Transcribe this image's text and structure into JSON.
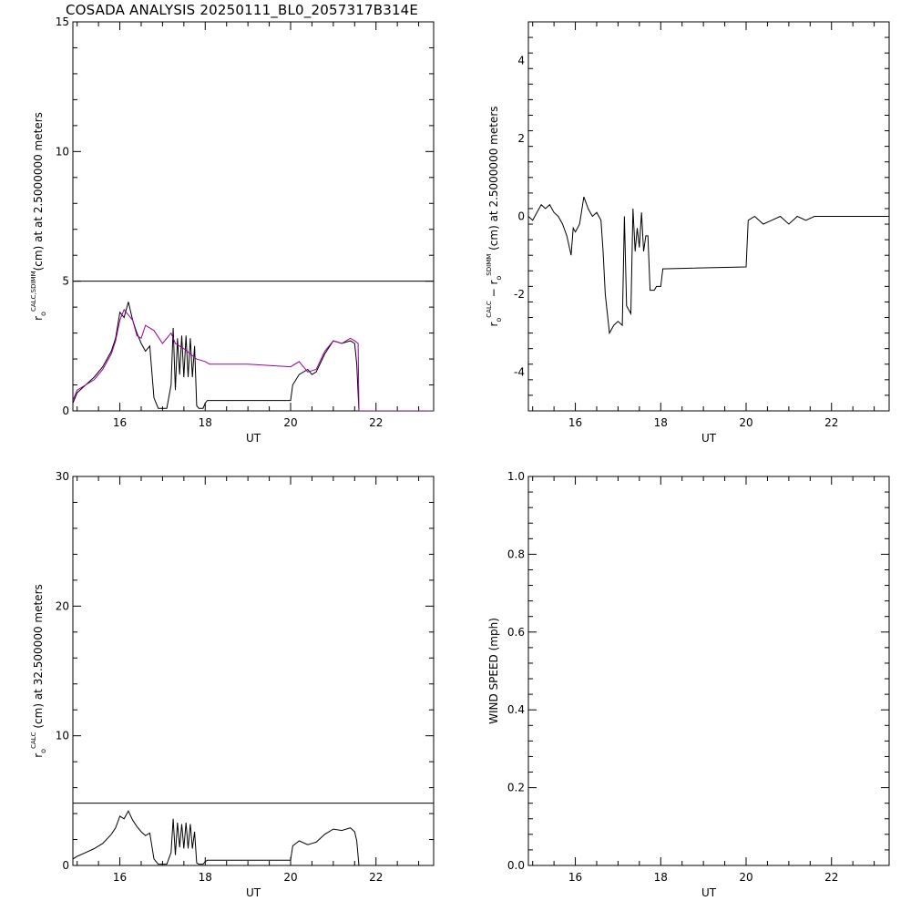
{
  "title": "COSADA ANALYSIS 20250111_BL0_2057317B314E",
  "chart_data": [
    {
      "type": "line",
      "panel": "top-left",
      "xlabel": "UT",
      "ylabel": {
        "base": "r",
        "sub": "o",
        "sup": "CALC,SDIMM",
        "rest": "(cm)  at  at 2.5000000 meters"
      },
      "xlim": [
        14.9,
        23.35
      ],
      "ylim": [
        0,
        15
      ],
      "xticks": [
        16,
        18,
        20,
        22
      ],
      "yticks": [
        0,
        5,
        10,
        15
      ],
      "reference_line": 5,
      "series": [
        {
          "color": "#000000",
          "x": [
            14.9,
            15.0,
            15.2,
            15.4,
            15.6,
            15.8,
            15.9,
            16.0,
            16.1,
            16.2,
            16.3,
            16.4,
            16.5,
            16.6,
            16.7,
            16.75,
            16.8,
            16.9,
            17.0,
            17.05,
            17.1,
            17.2,
            17.25,
            17.3,
            17.35,
            17.4,
            17.45,
            17.5,
            17.55,
            17.6,
            17.65,
            17.7,
            17.75,
            17.8,
            17.85,
            17.9,
            17.95,
            18.0,
            18.05,
            18.1,
            20.0,
            20.05,
            20.2,
            20.4,
            20.5,
            20.6,
            20.8,
            21.0,
            21.2,
            21.4,
            21.5,
            21.55,
            21.6
          ],
          "y": [
            0.3,
            0.7,
            1.0,
            1.3,
            1.7,
            2.3,
            2.8,
            3.8,
            3.6,
            4.2,
            3.5,
            3.0,
            2.6,
            2.3,
            2.5,
            1.5,
            0.5,
            0.1,
            0.1,
            0.1,
            0.1,
            1.0,
            3.2,
            0.8,
            2.8,
            1.4,
            2.9,
            1.3,
            2.9,
            1.3,
            2.8,
            1.3,
            2.5,
            0.2,
            0.1,
            0.1,
            0.1,
            0.3,
            0.4,
            0.4,
            0.4,
            1.0,
            1.4,
            1.6,
            1.4,
            1.5,
            2.2,
            2.7,
            2.6,
            2.7,
            2.6,
            1.8,
            0.0
          ]
        },
        {
          "color": "#990099",
          "x": [
            14.9,
            15.0,
            15.2,
            15.4,
            15.6,
            15.8,
            15.9,
            16.0,
            16.1,
            16.2,
            16.3,
            16.4,
            16.5,
            16.6,
            16.8,
            17.0,
            17.2,
            17.3,
            17.5,
            17.8,
            18.0,
            18.1,
            19.0,
            20.0,
            20.2,
            20.4,
            20.6,
            20.8,
            21.0,
            21.2,
            21.4,
            21.5,
            21.58,
            21.6,
            23.35
          ],
          "y": [
            0.4,
            0.8,
            1.0,
            1.2,
            1.6,
            2.2,
            2.7,
            3.5,
            3.9,
            3.7,
            3.5,
            2.9,
            2.8,
            3.3,
            3.1,
            2.6,
            3.0,
            2.6,
            2.4,
            2.0,
            1.9,
            1.8,
            1.8,
            1.7,
            1.9,
            1.5,
            1.6,
            2.3,
            2.7,
            2.6,
            2.8,
            2.7,
            2.6,
            0.0,
            0.0
          ]
        }
      ]
    },
    {
      "type": "line",
      "panel": "top-right",
      "xlabel": "UT",
      "ylabel": {
        "base": "r",
        "sub": "o",
        "sup": "CALC",
        "mid": "  −  r",
        "sub2": "o",
        "sup2": "SDIMM",
        "rest": " (cm)  at 2.5000000 meters"
      },
      "xlim": [
        14.9,
        23.35
      ],
      "ylim": [
        -5,
        5
      ],
      "xticks": [
        16,
        18,
        20,
        22
      ],
      "yticks": [
        -4,
        -2,
        0,
        2,
        4
      ],
      "series": [
        {
          "color": "#000000",
          "x": [
            14.9,
            15.0,
            15.1,
            15.2,
            15.3,
            15.4,
            15.5,
            15.6,
            15.7,
            15.8,
            15.9,
            15.95,
            16.0,
            16.1,
            16.2,
            16.3,
            16.4,
            16.5,
            16.6,
            16.65,
            16.7,
            16.8,
            16.9,
            17.0,
            17.1,
            17.15,
            17.2,
            17.3,
            17.35,
            17.4,
            17.45,
            17.5,
            17.55,
            17.6,
            17.65,
            17.7,
            17.75,
            17.8,
            17.85,
            17.9,
            18.0,
            18.05,
            20.0,
            20.05,
            20.2,
            20.4,
            20.6,
            20.8,
            21.0,
            21.2,
            21.4,
            21.6,
            23.35
          ],
          "y": [
            0.0,
            -0.1,
            0.1,
            0.3,
            0.2,
            0.3,
            0.1,
            0.0,
            -0.2,
            -0.5,
            -1.0,
            -0.3,
            -0.4,
            -0.2,
            0.5,
            0.2,
            0.0,
            0.1,
            -0.1,
            -0.9,
            -2.0,
            -3.0,
            -2.8,
            -2.7,
            -2.8,
            0.0,
            -2.3,
            -2.5,
            0.2,
            -0.9,
            -0.3,
            -0.8,
            0.1,
            -0.9,
            -0.5,
            -0.5,
            -1.9,
            -1.9,
            -1.9,
            -1.8,
            -1.8,
            -1.35,
            -1.3,
            -0.1,
            0.0,
            -0.2,
            -0.1,
            0.0,
            -0.2,
            0.0,
            -0.1,
            0.0,
            0.0
          ]
        }
      ]
    },
    {
      "type": "line",
      "panel": "bottom-left",
      "xlabel": "UT",
      "ylabel": {
        "base": "r",
        "sub": "o",
        "sup": "CALC",
        "rest": " (cm) at 32.500000 meters"
      },
      "xlim": [
        14.9,
        23.35
      ],
      "ylim": [
        0,
        30
      ],
      "xticks": [
        16,
        18,
        20,
        22
      ],
      "yticks": [
        0,
        10,
        20,
        30
      ],
      "reference_line": 4.8,
      "series": [
        {
          "color": "#000000",
          "x": [
            14.9,
            15.0,
            15.2,
            15.4,
            15.6,
            15.8,
            15.9,
            16.0,
            16.1,
            16.2,
            16.3,
            16.4,
            16.5,
            16.6,
            16.7,
            16.75,
            16.8,
            16.9,
            17.0,
            17.05,
            17.1,
            17.2,
            17.25,
            17.3,
            17.35,
            17.4,
            17.45,
            17.5,
            17.55,
            17.6,
            17.65,
            17.7,
            17.75,
            17.8,
            17.85,
            17.9,
            17.95,
            18.0,
            18.05,
            18.1,
            20.0,
            20.05,
            20.2,
            20.4,
            20.5,
            20.6,
            20.8,
            21.0,
            21.2,
            21.4,
            21.5,
            21.55,
            21.6
          ],
          "y": [
            0.5,
            0.7,
            1.0,
            1.3,
            1.7,
            2.4,
            2.9,
            3.8,
            3.6,
            4.2,
            3.5,
            3.0,
            2.6,
            2.3,
            2.5,
            1.5,
            0.5,
            0.1,
            0.1,
            0.1,
            0.1,
            1.0,
            3.6,
            0.8,
            3.3,
            1.4,
            3.2,
            1.3,
            3.3,
            1.3,
            3.2,
            1.3,
            2.6,
            0.2,
            0.1,
            0.1,
            0.1,
            0.3,
            0.4,
            0.4,
            0.4,
            1.5,
            1.9,
            1.6,
            1.7,
            1.8,
            2.4,
            2.8,
            2.7,
            2.9,
            2.6,
            1.9,
            0.0
          ]
        }
      ]
    },
    {
      "type": "line",
      "panel": "bottom-right",
      "xlabel": "UT",
      "ylabel": {
        "base": "WIND SPEED (mph)"
      },
      "xlim": [
        14.9,
        23.35
      ],
      "ylim": [
        0,
        1.0
      ],
      "xticks": [
        16,
        18,
        20,
        22
      ],
      "yticks": [
        0.0,
        0.2,
        0.4,
        0.6,
        0.8,
        1.0
      ],
      "series": []
    }
  ]
}
